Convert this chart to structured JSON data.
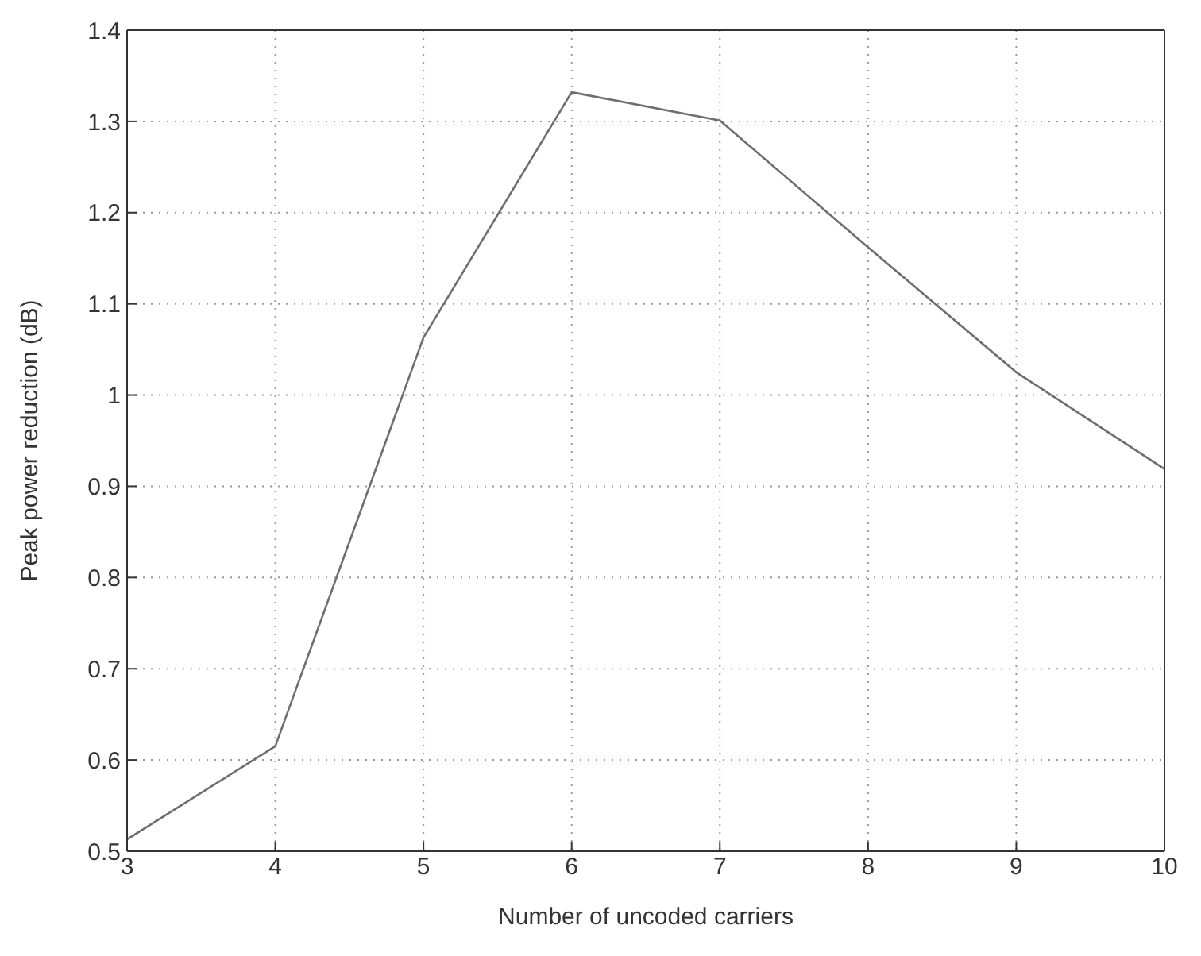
{
  "chart_data": {
    "type": "line",
    "xlabel": "Number of uncoded carriers",
    "ylabel": "Peak power reduction (dB)",
    "x": [
      3,
      4,
      5,
      6,
      7,
      8,
      9,
      10
    ],
    "series": [
      {
        "color": "#6e6e6e",
        "values": [
          0.513,
          0.615,
          1.063,
          1.332,
          1.301,
          1.162,
          1.025,
          0.919
        ]
      }
    ],
    "xlim": [
      3,
      10
    ],
    "xticks": [
      3,
      4,
      5,
      6,
      7,
      8,
      9,
      10
    ],
    "ylim": [
      0.5,
      1.4
    ],
    "yticks": [
      0.5,
      0.6,
      0.7,
      0.8,
      0.9,
      1,
      1.1,
      1.2,
      1.3,
      1.4
    ],
    "grid": true,
    "marker": "none",
    "line_style": "solid"
  }
}
